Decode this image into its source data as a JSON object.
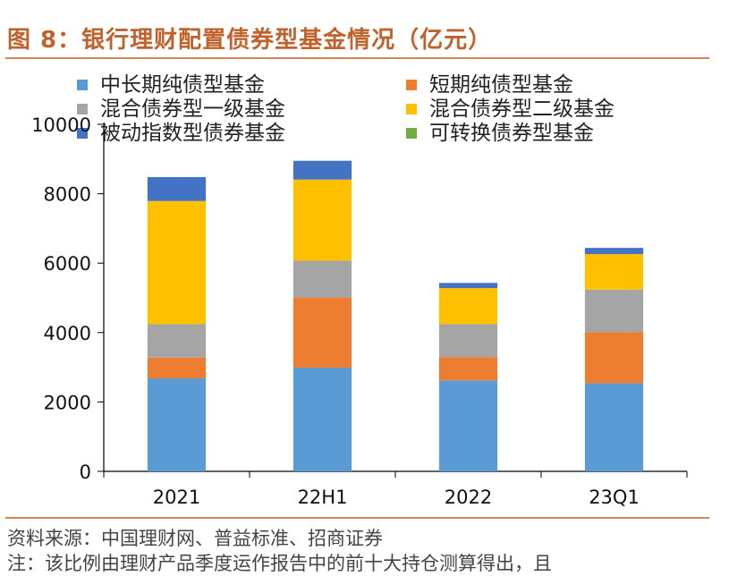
{
  "title": "图 8：银行理财配置债券型基金情况（亿元）",
  "source": "资料来源：中国理财网、普益标准、招商证券",
  "note": "注：该比例由理财产品季度运作报告中的前十大持仓测算得出，且",
  "chart_data": {
    "type": "bar",
    "stacked": true,
    "categories": [
      "2021",
      "22H1",
      "2022",
      "23Q1"
    ],
    "ylim": [
      0,
      10000
    ],
    "yticks": [
      "0",
      "2000",
      "4000",
      "6000",
      "8000",
      "10000"
    ],
    "grid": false,
    "legend_position": "top",
    "series": [
      {
        "name": "中长期纯债型基金",
        "color": "#5b9bd5",
        "values": [
          2680,
          2990,
          2620,
          2540
        ]
      },
      {
        "name": "短期纯债型基金",
        "color": "#ed7d31",
        "values": [
          600,
          2020,
          670,
          1470
        ]
      },
      {
        "name": "混合债券型一级基金",
        "color": "#a5a5a5",
        "values": [
          960,
          1060,
          950,
          1230
        ]
      },
      {
        "name": "混合债券型二级基金",
        "color": "#ffc000",
        "values": [
          3550,
          2340,
          1040,
          1020
        ]
      },
      {
        "name": "被动指数型债券基金",
        "color": "#4472c4",
        "values": [
          690,
          540,
          150,
          180
        ]
      },
      {
        "name": "可转换债券型基金",
        "color": "#70ad47",
        "values": [
          0,
          0,
          0,
          0
        ]
      }
    ]
  }
}
